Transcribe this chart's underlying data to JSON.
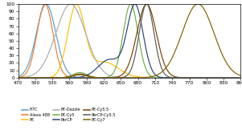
{
  "xlim": [
    470,
    860
  ],
  "ylim": [
    0,
    100
  ],
  "xticks": [
    470,
    500,
    530,
    560,
    590,
    620,
    650,
    680,
    710,
    740,
    770,
    800,
    830,
    860
  ],
  "yticks": [
    0,
    10,
    20,
    30,
    40,
    50,
    60,
    70,
    80,
    90,
    100
  ],
  "background_color": "#FFFFFF",
  "fluorophores": [
    {
      "name": "FITC",
      "color": "#5B9BD5",
      "peaks": [
        {
          "peak": 519,
          "sigma": 17,
          "amp": 100
        }
      ]
    },
    {
      "name": "Alexa 488",
      "color": "#ED7D31",
      "peaks": [
        {
          "peak": 517,
          "sigma": 14,
          "amp": 100
        }
      ]
    },
    {
      "name": "PE",
      "color": "#FFC000",
      "peaks": [
        {
          "peak": 565,
          "sigma": 13,
          "amp": 95
        },
        {
          "peak": 578,
          "sigma": 13,
          "amp": 100
        },
        {
          "peak": 620,
          "sigma": 25,
          "amp": 38
        }
      ]
    },
    {
      "name": "PE-Dazzle",
      "color": "#ABABAB",
      "peaks": [
        {
          "peak": 562,
          "sigma": 26,
          "amp": 100
        }
      ]
    },
    {
      "name": "PE-Cy5",
      "color": "#70AD47",
      "peaks": [
        {
          "peak": 667,
          "sigma": 13,
          "amp": 100
        },
        {
          "peak": 578,
          "sigma": 12,
          "amp": 7
        }
      ]
    },
    {
      "name": "PerCP",
      "color": "#264478",
      "peaks": [
        {
          "peak": 675,
          "sigma": 14,
          "amp": 100
        },
        {
          "peak": 630,
          "sigma": 20,
          "amp": 25
        }
      ]
    },
    {
      "name": "PE-Cy5.5",
      "color": "#7B3F00",
      "peaks": [
        {
          "peak": 695,
          "sigma": 17,
          "amp": 100
        },
        {
          "peak": 578,
          "sigma": 12,
          "amp": 5
        }
      ]
    },
    {
      "name": "PerCP-Cy5.5",
      "color": "#595959",
      "peaks": [
        {
          "peak": 695,
          "sigma": 13,
          "amp": 100
        }
      ]
    },
    {
      "name": "PE-Cy7",
      "color": "#806000",
      "peaks": [
        {
          "peak": 785,
          "sigma": 28,
          "amp": 100
        },
        {
          "peak": 578,
          "sigma": 12,
          "amp": 4
        }
      ]
    }
  ],
  "legend": [
    {
      "name": "FITC",
      "color": "#5B9BD5"
    },
    {
      "name": "Alexa 488",
      "color": "#ED7D31"
    },
    {
      "name": "PE",
      "color": "#FFC000"
    },
    {
      "name": "PE-Dazzle",
      "color": "#ABABAB"
    },
    {
      "name": "PE-Cy5",
      "color": "#70AD47"
    },
    {
      "name": "PerCP",
      "color": "#264478"
    },
    {
      "name": "PE-Cy5.5",
      "color": "#7B3F00"
    },
    {
      "name": "PerCP-Cy5.5",
      "color": "#595959"
    },
    {
      "name": "PE-Cy7",
      "color": "#806000"
    }
  ]
}
